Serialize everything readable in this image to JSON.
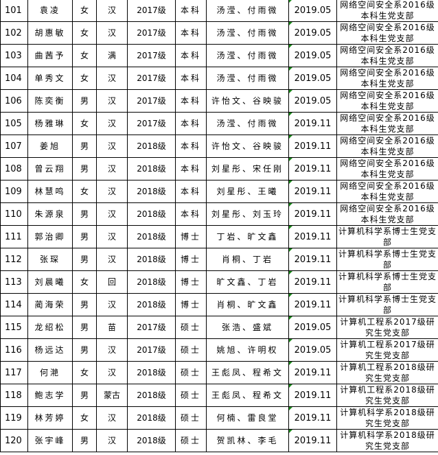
{
  "table": {
    "rows": [
      {
        "no": "101",
        "name": "袁凌",
        "gender": "女",
        "ethnicity": "汉",
        "grade": "2017级",
        "degree": "本科",
        "introducers": "汤滢、付雨微",
        "date": "2019.05",
        "branch": "网络空间安全系2016级本科生党支部"
      },
      {
        "no": "102",
        "name": "胡惠敏",
        "gender": "女",
        "ethnicity": "汉",
        "grade": "2017级",
        "degree": "本科",
        "introducers": "汤滢、付雨微",
        "date": "2019.05",
        "branch": "网络空间安全系2016级本科生党支部"
      },
      {
        "no": "103",
        "name": "曲茜予",
        "gender": "女",
        "ethnicity": "满",
        "grade": "2017级",
        "degree": "本科",
        "introducers": "汤滢、付雨微",
        "date": "2019.05",
        "branch": "网络空间安全系2016级本科生党支部"
      },
      {
        "no": "104",
        "name": "单秀文",
        "gender": "女",
        "ethnicity": "汉",
        "grade": "2017级",
        "degree": "本科",
        "introducers": "汤滢、付雨微",
        "date": "2019.05",
        "branch": "网络空间安全系2016级本科生党支部"
      },
      {
        "no": "106",
        "name": "陈奕衡",
        "gender": "男",
        "ethnicity": "汉",
        "grade": "2017级",
        "degree": "本科",
        "introducers": "许怡文、谷映骏",
        "date": "2019.05",
        "branch": "网络空间安全系2016级本科生党支部"
      },
      {
        "no": "105",
        "name": "杨雅琳",
        "gender": "女",
        "ethnicity": "汉",
        "grade": "2017级",
        "degree": "本科",
        "introducers": "汤滢、付雨微",
        "date": "2019.11",
        "branch": "网络空间安全系2016级本科生党支部"
      },
      {
        "no": "107",
        "name": "姜旭",
        "gender": "男",
        "ethnicity": "汉",
        "grade": "2018级",
        "degree": "本科",
        "introducers": "许怡文、谷映骏",
        "date": "2019.11",
        "branch": "网络空间安全系2016级本科生党支部"
      },
      {
        "no": "108",
        "name": "曾云翔",
        "gender": "男",
        "ethnicity": "汉",
        "grade": "2018级",
        "degree": "本科",
        "introducers": "刘星彤、宋任刚",
        "date": "2019.11",
        "branch": "网络空间安全系2016级本科生党支部"
      },
      {
        "no": "109",
        "name": "林慧鸣",
        "gender": "女",
        "ethnicity": "汉",
        "grade": "2018级",
        "degree": "本科",
        "introducers": "刘星彤、王曦",
        "date": "2019.11",
        "branch": "网络空间安全系2016级本科生党支部"
      },
      {
        "no": "110",
        "name": "朱源泉",
        "gender": "男",
        "ethnicity": "汉",
        "grade": "2018级",
        "degree": "本科",
        "introducers": "刘星彤、刘玉玲",
        "date": "2019.11",
        "branch": "网络空间安全系2016级本科生党支部"
      },
      {
        "no": "111",
        "name": "郭治卿",
        "gender": "男",
        "ethnicity": "汉",
        "grade": "2018级",
        "degree": "博士",
        "introducers": "丁岩、旷文鑫",
        "date": "2019.11",
        "branch": "计算机科学系博士生党支部"
      },
      {
        "no": "112",
        "name": "张琛",
        "gender": "男",
        "ethnicity": "汉",
        "grade": "2018级",
        "degree": "博士",
        "introducers": "肖桐、丁岩",
        "date": "2019.11",
        "branch": "计算机科学系博士生党支部"
      },
      {
        "no": "113",
        "name": "刘晨曦",
        "gender": "女",
        "ethnicity": "回",
        "grade": "2018级",
        "degree": "博士",
        "introducers": "旷文鑫、丁岩",
        "date": "2019.11",
        "branch": "计算机科学系博士生党支部"
      },
      {
        "no": "114",
        "name": "蔺海荣",
        "gender": "男",
        "ethnicity": "汉",
        "grade": "2018级",
        "degree": "博士",
        "introducers": "肖桐、旷文鑫",
        "date": "2019.11",
        "branch": "计算机科学系博士生党支部"
      },
      {
        "no": "115",
        "name": "龙绍松",
        "gender": "男",
        "ethnicity": "苗",
        "grade": "2017级",
        "degree": "硕士",
        "introducers": "张浩、盛斌",
        "date": "2019.05",
        "branch": "计算机工程系2017级研究生党支部"
      },
      {
        "no": "116",
        "name": "杨远达",
        "gender": "男",
        "ethnicity": "汉",
        "grade": "2017级",
        "degree": "硕士",
        "introducers": "姚旭、许明权",
        "date": "2019.05",
        "branch": "计算机工程系2017级研究生党支部"
      },
      {
        "no": "117",
        "name": "何滟",
        "gender": "女",
        "ethnicity": "汉",
        "grade": "2018级",
        "degree": "硕士",
        "introducers": "王彪凤、程希文",
        "date": "2019.11",
        "branch": "计算机工程系2018级研究生党支部"
      },
      {
        "no": "118",
        "name": "鲍志学",
        "gender": "男",
        "ethnicity": "蒙古",
        "grade": "2018级",
        "degree": "硕士",
        "introducers": "王彪凤、程希文",
        "date": "2019.11",
        "branch": "计算机工程系2018级研究生党支部"
      },
      {
        "no": "119",
        "name": "林芳婷",
        "gender": "女",
        "ethnicity": "汉",
        "grade": "2018级",
        "degree": "硕士",
        "introducers": "何楠、雷良堂",
        "date": "2019.11",
        "branch": "计算机科学系2018级研究生党支部"
      },
      {
        "no": "120",
        "name": "张宇峰",
        "gender": "男",
        "ethnicity": "汉",
        "grade": "2018级",
        "degree": "硕士",
        "introducers": "贺凯林、李毛",
        "date": "2019.11",
        "branch": "计算机科学系2018级研究生党支部"
      }
    ]
  }
}
